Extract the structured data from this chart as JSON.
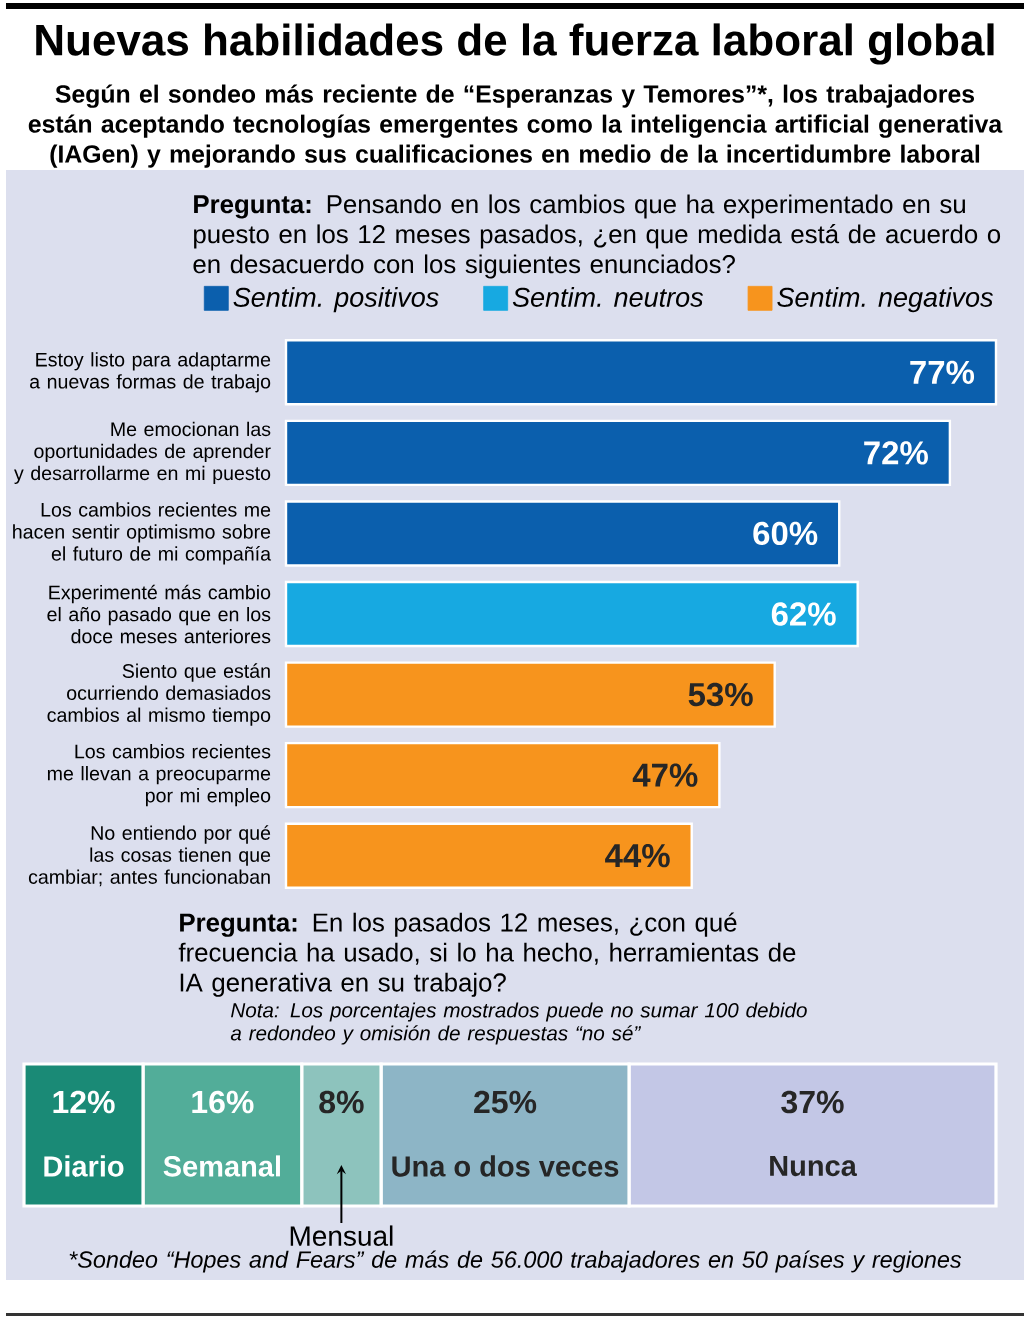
{
  "chart_data": [
    {
      "type": "bar",
      "orientation": "horizontal",
      "title": "Nuevas habilidades de la fuerza laboral global",
      "subtitle": "Según el sondeo más reciente de “Esperanzas y Temores”*, los trabajadores están aceptando tecnologías emergentes como la inteligencia artificial generativa (IAGen) y mejorando sus cualificaciones en medio de la incertidumbre laboral",
      "annotations": [
        "**Pregunta:** Pensando en los cambios que ha experimentado en su puesto en los 12 meses pasados, ¿en que medida está de acuerdo o en desacuerdo con los siguientes enunciados?"
      ],
      "categories": [
        "Estoy listo para adaptarme a nuevas formas de trabajo",
        "Me emocionan las oportunidades de aprender y desarrollarme en mi puesto",
        "Los cambios recientes me hacen sentir optimismo sobre el futuro de mi compañía",
        "Experimenté más cambio el año pasado que en los doce meses anteriores",
        "Siento que están ocurriendo demasiados cambios al mismo tiempo",
        "Los cambios recientes me llevan a preocuparme por mi empleo",
        "No entiendo por qué las cosas tienen que cambiar; antes funcionaban"
      ],
      "series": [
        {
          "name": "Sentim. positivos",
          "color": "#0b5fad",
          "values": [
            77,
            72,
            60,
            null,
            null,
            null,
            null
          ],
          "value_labels": [
            "77%",
            "72%",
            "60%",
            null,
            null,
            null,
            null
          ]
        },
        {
          "name": "Sentim. neutros",
          "color": "#17a9e1",
          "values": [
            null,
            null,
            null,
            62,
            null,
            null,
            null
          ],
          "value_labels": [
            null,
            null,
            null,
            "62%",
            null,
            null,
            null
          ]
        },
        {
          "name": "Sentim. negativos",
          "color": "#f7941d",
          "values": [
            null,
            null,
            null,
            null,
            53,
            47,
            44
          ],
          "value_labels": [
            null,
            null,
            null,
            null,
            "53%",
            "47%",
            "44%"
          ]
        }
      ],
      "legend": "top",
      "tick_labels": "y"
    },
    {
      "type": "bar",
      "orientation": "horizontal",
      "stacked": true,
      "categories": [
        null
      ],
      "series": [
        {
          "name": "Diario",
          "color": "#1a8a76",
          "values": [
            12
          ],
          "value_labels": [
            "12%"
          ]
        },
        {
          "name": "Semanal",
          "color": "#52ad99",
          "values": [
            16
          ],
          "value_labels": [
            "16%"
          ]
        },
        {
          "name": "Mensual",
          "color": "#8dc3bd",
          "values": [
            8
          ],
          "value_labels": [
            "8%"
          ]
        },
        {
          "name": "Una o dos veces",
          "color": "#8db5c6",
          "values": [
            25
          ],
          "value_labels": [
            "25%"
          ]
        },
        {
          "name": "Nunca",
          "color": "#c3c7e6",
          "values": [
            37
          ],
          "value_labels": [
            "37%"
          ]
        }
      ],
      "annotations": [
        "**Pregunta:** En los pasados 12 meses, ¿con qué frecuencia ha usado, si lo ha hecho, herramientas de IA generativa en su trabajo?",
        "Nota: Los porcentajes mostrados puede no sumar 100 debido a redondeo y omisión de respuestas “no sé”",
        "*Sondeo “Hopes and Fears” de más de 56.000 trabajadores en 50 países y regiones"
      ],
      "tick_labels": false
    }
  ]
}
